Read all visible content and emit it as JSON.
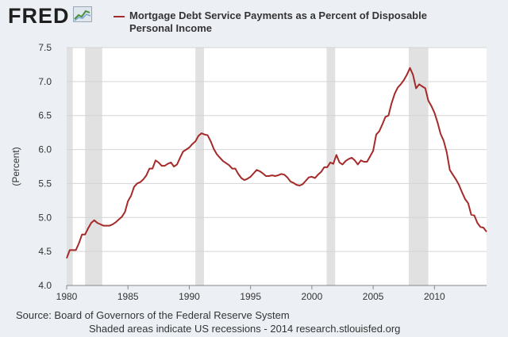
{
  "brand": {
    "name": "FRED",
    "icon": "chart-trend-icon"
  },
  "legend": {
    "line1": "Mortgage Debt Service Payments as a Percent of Disposable",
    "line2": "Personal Income",
    "color": "#a52a2a"
  },
  "footer": {
    "source": "Source: Board of Governors of the Federal Reserve System",
    "note": "Shaded areas indicate US recessions - 2014 research.stlouisfed.org"
  },
  "chart_data": {
    "type": "line",
    "title": "",
    "xlabel": "",
    "ylabel": "(Percent)",
    "xlim": [
      1980,
      2014.25
    ],
    "ylim": [
      4.0,
      7.5
    ],
    "x_ticks": [
      1980,
      1985,
      1990,
      1995,
      2000,
      2005,
      2010
    ],
    "y_ticks": [
      4.0,
      4.5,
      5.0,
      5.5,
      6.0,
      6.5,
      7.0,
      7.5
    ],
    "y_tick_labels": [
      "4.0",
      "4.5",
      "5.0",
      "5.5",
      "6.0",
      "6.5",
      "7.0",
      "7.5"
    ],
    "grid": "horizontal",
    "line_color": "#a52a2a",
    "recessions": [
      [
        1980.0,
        1980.5
      ],
      [
        1981.5,
        1982.9
      ],
      [
        1990.5,
        1991.2
      ],
      [
        2001.2,
        2001.9
      ],
      [
        2007.9,
        2009.5
      ]
    ],
    "series": [
      {
        "values": [
          [
            1980.0,
            4.4
          ],
          [
            1980.25,
            4.52
          ],
          [
            1980.5,
            4.52
          ],
          [
            1980.75,
            4.52
          ],
          [
            1981.0,
            4.62
          ],
          [
            1981.25,
            4.75
          ],
          [
            1981.5,
            4.75
          ],
          [
            1981.75,
            4.84
          ],
          [
            1982.0,
            4.92
          ],
          [
            1982.25,
            4.96
          ],
          [
            1982.5,
            4.92
          ],
          [
            1982.75,
            4.9
          ],
          [
            1983.0,
            4.88
          ],
          [
            1983.25,
            4.88
          ],
          [
            1983.5,
            4.88
          ],
          [
            1983.75,
            4.9
          ],
          [
            1984.0,
            4.93
          ],
          [
            1984.25,
            4.97
          ],
          [
            1984.5,
            5.01
          ],
          [
            1984.75,
            5.08
          ],
          [
            1985.0,
            5.24
          ],
          [
            1985.25,
            5.32
          ],
          [
            1985.5,
            5.45
          ],
          [
            1985.75,
            5.5
          ],
          [
            1986.0,
            5.52
          ],
          [
            1986.25,
            5.56
          ],
          [
            1986.5,
            5.62
          ],
          [
            1986.75,
            5.72
          ],
          [
            1987.0,
            5.72
          ],
          [
            1987.25,
            5.84
          ],
          [
            1987.5,
            5.81
          ],
          [
            1987.75,
            5.76
          ],
          [
            1988.0,
            5.76
          ],
          [
            1988.25,
            5.79
          ],
          [
            1988.5,
            5.81
          ],
          [
            1988.75,
            5.75
          ],
          [
            1989.0,
            5.78
          ],
          [
            1989.25,
            5.88
          ],
          [
            1989.5,
            5.97
          ],
          [
            1989.75,
            6.0
          ],
          [
            1990.0,
            6.03
          ],
          [
            1990.25,
            6.08
          ],
          [
            1990.5,
            6.12
          ],
          [
            1990.75,
            6.2
          ],
          [
            1991.0,
            6.24
          ],
          [
            1991.25,
            6.22
          ],
          [
            1991.5,
            6.21
          ],
          [
            1991.75,
            6.12
          ],
          [
            1992.0,
            6.01
          ],
          [
            1992.25,
            5.93
          ],
          [
            1992.5,
            5.88
          ],
          [
            1992.75,
            5.83
          ],
          [
            1993.0,
            5.8
          ],
          [
            1993.25,
            5.77
          ],
          [
            1993.5,
            5.72
          ],
          [
            1993.75,
            5.72
          ],
          [
            1994.0,
            5.64
          ],
          [
            1994.25,
            5.58
          ],
          [
            1994.5,
            5.55
          ],
          [
            1994.75,
            5.57
          ],
          [
            1995.0,
            5.6
          ],
          [
            1995.25,
            5.65
          ],
          [
            1995.5,
            5.7
          ],
          [
            1995.75,
            5.68
          ],
          [
            1996.0,
            5.65
          ],
          [
            1996.25,
            5.61
          ],
          [
            1996.5,
            5.61
          ],
          [
            1996.75,
            5.62
          ],
          [
            1997.0,
            5.61
          ],
          [
            1997.25,
            5.62
          ],
          [
            1997.5,
            5.64
          ],
          [
            1997.75,
            5.63
          ],
          [
            1998.0,
            5.59
          ],
          [
            1998.25,
            5.53
          ],
          [
            1998.5,
            5.51
          ],
          [
            1998.75,
            5.48
          ],
          [
            1999.0,
            5.47
          ],
          [
            1999.25,
            5.49
          ],
          [
            1999.5,
            5.54
          ],
          [
            1999.75,
            5.59
          ],
          [
            2000.0,
            5.6
          ],
          [
            2000.25,
            5.58
          ],
          [
            2000.5,
            5.63
          ],
          [
            2000.75,
            5.67
          ],
          [
            2001.0,
            5.74
          ],
          [
            2001.25,
            5.74
          ],
          [
            2001.5,
            5.81
          ],
          [
            2001.75,
            5.79
          ],
          [
            2002.0,
            5.92
          ],
          [
            2002.25,
            5.81
          ],
          [
            2002.5,
            5.78
          ],
          [
            2002.75,
            5.83
          ],
          [
            2003.0,
            5.86
          ],
          [
            2003.25,
            5.88
          ],
          [
            2003.5,
            5.84
          ],
          [
            2003.75,
            5.78
          ],
          [
            2004.0,
            5.84
          ],
          [
            2004.25,
            5.82
          ],
          [
            2004.5,
            5.82
          ],
          [
            2004.75,
            5.9
          ],
          [
            2005.0,
            5.98
          ],
          [
            2005.25,
            6.22
          ],
          [
            2005.5,
            6.27
          ],
          [
            2005.75,
            6.37
          ],
          [
            2006.0,
            6.48
          ],
          [
            2006.25,
            6.5
          ],
          [
            2006.5,
            6.68
          ],
          [
            2006.75,
            6.82
          ],
          [
            2007.0,
            6.91
          ],
          [
            2007.25,
            6.96
          ],
          [
            2007.5,
            7.02
          ],
          [
            2007.75,
            7.1
          ],
          [
            2008.0,
            7.2
          ],
          [
            2008.25,
            7.1
          ],
          [
            2008.5,
            6.9
          ],
          [
            2008.75,
            6.96
          ],
          [
            2009.0,
            6.93
          ],
          [
            2009.25,
            6.9
          ],
          [
            2009.5,
            6.72
          ],
          [
            2009.75,
            6.64
          ],
          [
            2010.0,
            6.54
          ],
          [
            2010.25,
            6.4
          ],
          [
            2010.5,
            6.23
          ],
          [
            2010.75,
            6.13
          ],
          [
            2011.0,
            5.96
          ],
          [
            2011.25,
            5.7
          ],
          [
            2011.5,
            5.63
          ],
          [
            2011.75,
            5.56
          ],
          [
            2012.0,
            5.48
          ],
          [
            2012.25,
            5.37
          ],
          [
            2012.5,
            5.27
          ],
          [
            2012.75,
            5.21
          ],
          [
            2013.0,
            5.04
          ],
          [
            2013.25,
            5.03
          ],
          [
            2013.5,
            4.92
          ],
          [
            2013.75,
            4.86
          ],
          [
            2014.0,
            4.85
          ],
          [
            2014.25,
            4.79
          ]
        ]
      }
    ]
  }
}
